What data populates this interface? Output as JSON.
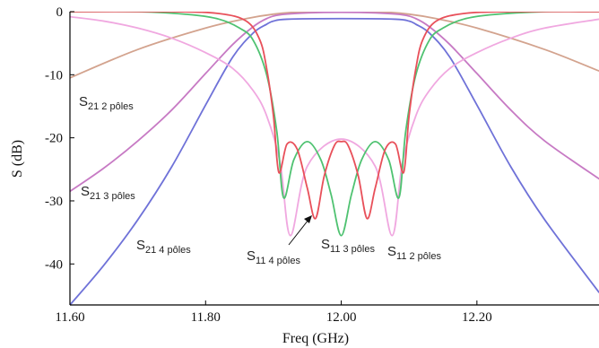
{
  "chart_data": {
    "type": "line",
    "xlabel": "Freq (GHz)",
    "ylabel": "S (dB)",
    "xlim": [
      11.6,
      12.38
    ],
    "ylim": [
      -46.5,
      0
    ],
    "xticks": [
      "11.60",
      "11.80",
      "12.00",
      "12.20"
    ],
    "yticks": [
      "0",
      "-10",
      "-20",
      "-30",
      "-40"
    ],
    "grid": false,
    "colors": {
      "s21_2": "#d3a38e",
      "s21_3": "#c77ac4",
      "s21_4": "#6f72d8",
      "s11_2": "#f0a8e0",
      "s11_3": "#4fc271",
      "s11_4": "#e8505a"
    },
    "series": [
      {
        "name": "S21 2 pôles",
        "x": [
          11.6,
          11.7,
          11.8,
          11.86,
          11.9,
          11.94,
          12.0,
          12.06,
          12.1,
          12.14,
          12.2,
          12.3,
          12.38
        ],
        "y": [
          -10.5,
          -6.0,
          -2.6,
          -1.1,
          -0.4,
          -0.05,
          0,
          -0.05,
          -0.4,
          -1.1,
          -2.6,
          -6.0,
          -9.4
        ]
      },
      {
        "name": "S21 3 pôles",
        "x": [
          11.6,
          11.65,
          11.7,
          11.75,
          11.8,
          11.84,
          11.87,
          11.89,
          11.91,
          11.95,
          12.0,
          12.05,
          12.09,
          12.11,
          12.13,
          12.16,
          12.2,
          12.25,
          12.3,
          12.38
        ],
        "y": [
          -28.5,
          -24.8,
          -20.5,
          -15.6,
          -9.8,
          -5.2,
          -2.4,
          -1.1,
          -0.5,
          -0.2,
          -0.1,
          -0.2,
          -0.5,
          -1.1,
          -2.4,
          -5.2,
          -9.8,
          -15.6,
          -20.5,
          -26.5
        ]
      },
      {
        "name": "S21 4 pôles",
        "x": [
          11.6,
          11.65,
          11.7,
          11.75,
          11.8,
          11.84,
          11.87,
          11.89,
          11.9,
          11.92,
          12.0,
          12.08,
          12.1,
          12.11,
          12.13,
          12.16,
          12.2,
          12.25,
          12.3,
          12.38
        ],
        "y": [
          -46.5,
          -40.2,
          -33.0,
          -24.6,
          -14.8,
          -7.2,
          -3.4,
          -2.0,
          -1.5,
          -1.2,
          -1.1,
          -1.2,
          -1.5,
          -2.0,
          -3.4,
          -7.2,
          -14.8,
          -24.6,
          -33.0,
          -44.5
        ]
      },
      {
        "name": "S11 2 pôles",
        "x": [
          11.6,
          11.65,
          11.7,
          11.75,
          11.8,
          11.84,
          11.87,
          11.89,
          11.91,
          11.925,
          11.95,
          12.0,
          12.05,
          12.075,
          12.09,
          12.11,
          12.13,
          12.16,
          12.2,
          12.25,
          12.3,
          12.38
        ],
        "y": [
          -0.8,
          -1.5,
          -2.6,
          -4.2,
          -6.5,
          -9.0,
          -12.5,
          -16.5,
          -24.0,
          -35.5,
          -24.5,
          -20.2,
          -24.5,
          -35.5,
          -24.0,
          -16.5,
          -12.5,
          -9.0,
          -6.5,
          -4.2,
          -2.6,
          -1.2
        ]
      },
      {
        "name": "S11 3 pôles",
        "x": [
          11.6,
          11.7,
          11.78,
          11.82,
          11.85,
          11.87,
          11.89,
          11.905,
          11.915,
          11.93,
          11.95,
          11.97,
          11.985,
          12.0,
          12.015,
          12.03,
          12.05,
          12.07,
          12.085,
          12.095,
          12.11,
          12.13,
          12.15,
          12.18,
          12.22,
          12.3,
          12.38
        ],
        "y": [
          0,
          0,
          -0.5,
          -1.2,
          -2.6,
          -4.5,
          -10.0,
          -19.0,
          -29.5,
          -23.5,
          -20.6,
          -23.5,
          -29.0,
          -35.5,
          -29.0,
          -23.5,
          -20.6,
          -23.5,
          -29.5,
          -19.0,
          -10.0,
          -4.5,
          -2.6,
          -1.2,
          -0.5,
          0,
          0
        ]
      },
      {
        "name": "S11 4 pôles",
        "x": [
          11.6,
          11.75,
          11.82,
          11.86,
          11.88,
          11.89,
          11.9,
          11.908,
          11.92,
          11.935,
          11.95,
          11.962,
          11.975,
          11.99,
          12.0,
          12.01,
          12.025,
          12.038,
          12.05,
          12.065,
          12.08,
          12.092,
          12.1,
          12.11,
          12.12,
          12.14,
          12.18,
          12.25,
          12.38
        ],
        "y": [
          0,
          0,
          -0.3,
          -1.5,
          -4.5,
          -9.0,
          -16.5,
          -25.5,
          -21.0,
          -21.8,
          -28.0,
          -32.8,
          -26.0,
          -21.2,
          -20.6,
          -21.2,
          -26.0,
          -32.8,
          -28.0,
          -21.8,
          -21.0,
          -25.5,
          -16.5,
          -9.0,
          -4.5,
          -1.5,
          -0.3,
          0,
          0
        ]
      }
    ],
    "annotations": [
      {
        "main": "S",
        "sub": "21 2 pôles",
        "series": "S21 2 pôles"
      },
      {
        "main": "S",
        "sub": "21 3 pôles",
        "series": "S21 3 pôles"
      },
      {
        "main": "S",
        "sub": "21 4 pôles",
        "series": "S21 4 pôles"
      },
      {
        "main": "S",
        "sub": "11 4 pôles",
        "series": "S11 4 pôles"
      },
      {
        "main": "S",
        "sub": "11 3 pôles",
        "series": "S11 3 pôles"
      },
      {
        "main": "S",
        "sub": "11 2 pôles",
        "series": "S11 2 pôles"
      }
    ]
  }
}
